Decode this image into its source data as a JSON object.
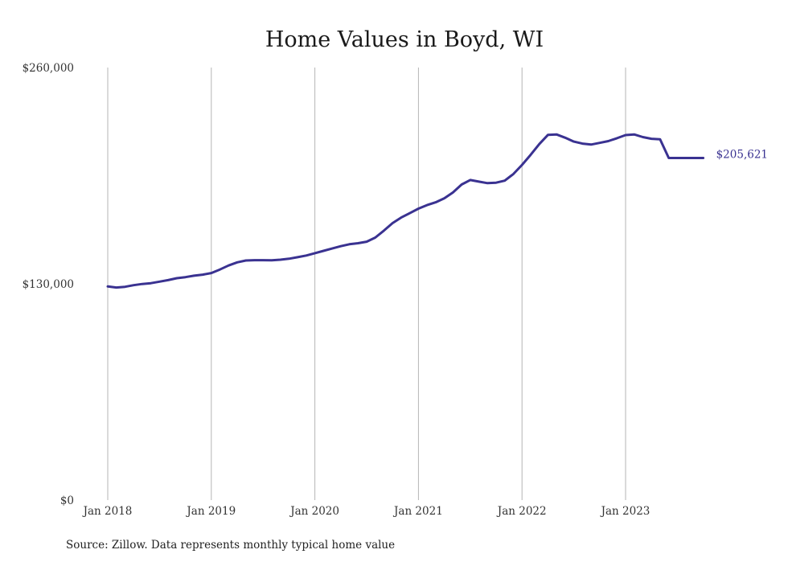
{
  "chart_data": {
    "type": "line",
    "title": "Home Values in Boyd, WI",
    "xlabel": "",
    "ylabel": "",
    "ylim": [
      0,
      260000
    ],
    "y_ticks": [
      {
        "value": 0,
        "label": "$0"
      },
      {
        "value": 130000,
        "label": "$130,000"
      },
      {
        "value": 260000,
        "label": "$260,000"
      }
    ],
    "x_ticks": [
      {
        "date": "2018-01",
        "label": "Jan 2018"
      },
      {
        "date": "2019-01",
        "label": "Jan 2019"
      },
      {
        "date": "2020-01",
        "label": "Jan 2020"
      },
      {
        "date": "2021-01",
        "label": "Jan 2021"
      },
      {
        "date": "2022-01",
        "label": "Jan 2022"
      },
      {
        "date": "2023-01",
        "label": "Jan 2023"
      }
    ],
    "grid": "vertical",
    "series": [
      {
        "color": "#3a3291",
        "end_label": "$205,621",
        "x": [
          "2018-01",
          "2018-02",
          "2018-03",
          "2018-04",
          "2018-05",
          "2018-06",
          "2018-07",
          "2018-08",
          "2018-09",
          "2018-10",
          "2018-11",
          "2018-12",
          "2019-01",
          "2019-02",
          "2019-03",
          "2019-04",
          "2019-05",
          "2019-06",
          "2019-07",
          "2019-08",
          "2019-09",
          "2019-10",
          "2019-11",
          "2019-12",
          "2020-01",
          "2020-02",
          "2020-03",
          "2020-04",
          "2020-05",
          "2020-06",
          "2020-07",
          "2020-08",
          "2020-09",
          "2020-10",
          "2020-11",
          "2020-12",
          "2021-01",
          "2021-02",
          "2021-03",
          "2021-04",
          "2021-05",
          "2021-06",
          "2021-07",
          "2021-08",
          "2021-09",
          "2021-10",
          "2021-11",
          "2021-12",
          "2022-01",
          "2022-02",
          "2022-03",
          "2022-04",
          "2022-05",
          "2022-06",
          "2022-07",
          "2022-08",
          "2022-09",
          "2022-10",
          "2022-11",
          "2022-12",
          "2023-01",
          "2023-02",
          "2023-03",
          "2023-04",
          "2023-05",
          "2023-06",
          "2023-07",
          "2023-08",
          "2023-09",
          "2023-10"
        ],
        "values": [
          128400,
          127800,
          128200,
          129200,
          129900,
          130400,
          131300,
          132200,
          133400,
          134000,
          134900,
          135500,
          136500,
          138600,
          141000,
          142900,
          144000,
          144200,
          144200,
          144100,
          144500,
          145100,
          146000,
          147000,
          148400,
          149800,
          151200,
          152600,
          153800,
          154400,
          155300,
          157800,
          162000,
          166500,
          169800,
          172500,
          175200,
          177300,
          179000,
          181400,
          184900,
          189700,
          192400,
          191400,
          190500,
          190800,
          192000,
          196000,
          201500,
          207500,
          214000,
          219500,
          219800,
          217800,
          215500,
          214300,
          213700,
          214700,
          215800,
          217500,
          219400,
          219800,
          218200,
          217200,
          216900,
          205621,
          205621,
          205621,
          205621,
          205621
        ]
      }
    ]
  },
  "source_note": "Source: Zillow. Data represents monthly typical home value"
}
